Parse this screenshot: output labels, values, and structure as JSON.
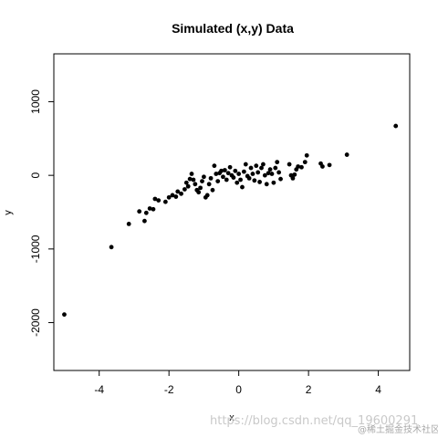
{
  "chart_data": {
    "type": "scatter",
    "title": "Simulated (x,y) Data",
    "xlabel": "x",
    "ylabel": "y",
    "xlim": [
      -5.3,
      4.9
    ],
    "ylim": [
      -2650,
      1650
    ],
    "xticks": [
      -4,
      -2,
      0,
      2,
      4
    ],
    "yticks": [
      -2000,
      -1000,
      0,
      1000
    ],
    "grid": false,
    "legend": "none",
    "point_color": "#000000",
    "points": [
      [
        -5.0,
        -1890
      ],
      [
        -3.65,
        -975
      ],
      [
        -3.15,
        -660
      ],
      [
        -2.85,
        -490
      ],
      [
        -2.7,
        -620
      ],
      [
        -2.65,
        -510
      ],
      [
        -2.55,
        -450
      ],
      [
        -2.45,
        -460
      ],
      [
        -2.4,
        -320
      ],
      [
        -2.3,
        -340
      ],
      [
        -2.1,
        -360
      ],
      [
        -2.0,
        -300
      ],
      [
        -1.9,
        -270
      ],
      [
        -1.8,
        -290
      ],
      [
        -1.75,
        -220
      ],
      [
        -1.65,
        -250
      ],
      [
        -1.55,
        -190
      ],
      [
        -1.5,
        -100
      ],
      [
        -1.45,
        -150
      ],
      [
        -1.4,
        -50
      ],
      [
        -1.35,
        20
      ],
      [
        -1.3,
        -60
      ],
      [
        -1.25,
        -120
      ],
      [
        -1.2,
        -200
      ],
      [
        -1.15,
        -230
      ],
      [
        -1.1,
        -170
      ],
      [
        -1.05,
        -80
      ],
      [
        -1.0,
        -20
      ],
      [
        -0.95,
        -300
      ],
      [
        -0.9,
        -270
      ],
      [
        -0.85,
        -120
      ],
      [
        -0.8,
        -40
      ],
      [
        -0.75,
        -200
      ],
      [
        -0.7,
        130
      ],
      [
        -0.65,
        20
      ],
      [
        -0.6,
        -80
      ],
      [
        -0.55,
        30
      ],
      [
        -0.5,
        60
      ],
      [
        -0.45,
        -20
      ],
      [
        -0.4,
        70
      ],
      [
        -0.35,
        -60
      ],
      [
        -0.3,
        30
      ],
      [
        -0.25,
        110
      ],
      [
        -0.2,
        0
      ],
      [
        -0.15,
        -30
      ],
      [
        -0.1,
        60
      ],
      [
        -0.05,
        -100
      ],
      [
        0.0,
        20
      ],
      [
        0.05,
        -60
      ],
      [
        0.1,
        -160
      ],
      [
        0.15,
        50
      ],
      [
        0.2,
        150
      ],
      [
        0.25,
        -10
      ],
      [
        0.3,
        -40
      ],
      [
        0.35,
        100
      ],
      [
        0.4,
        20
      ],
      [
        0.45,
        -70
      ],
      [
        0.5,
        130
      ],
      [
        0.55,
        40
      ],
      [
        0.6,
        -90
      ],
      [
        0.65,
        100
      ],
      [
        0.7,
        150
      ],
      [
        0.75,
        0
      ],
      [
        0.8,
        -120
      ],
      [
        0.85,
        30
      ],
      [
        0.9,
        80
      ],
      [
        0.95,
        20
      ],
      [
        1.0,
        -100
      ],
      [
        1.05,
        100
      ],
      [
        1.1,
        180
      ],
      [
        1.15,
        40
      ],
      [
        1.2,
        -50
      ],
      [
        1.45,
        150
      ],
      [
        1.5,
        0
      ],
      [
        1.55,
        -40
      ],
      [
        1.6,
        10
      ],
      [
        1.65,
        80
      ],
      [
        1.7,
        120
      ],
      [
        1.8,
        110
      ],
      [
        1.9,
        180
      ],
      [
        1.95,
        270
      ],
      [
        2.35,
        160
      ],
      [
        2.4,
        120
      ],
      [
        2.6,
        140
      ],
      [
        3.1,
        280
      ],
      [
        4.5,
        670
      ]
    ]
  },
  "watermark": {
    "text": "https://blog.csdn.net/qq_19600291",
    "text2": "@稀土掘金技术社区"
  }
}
